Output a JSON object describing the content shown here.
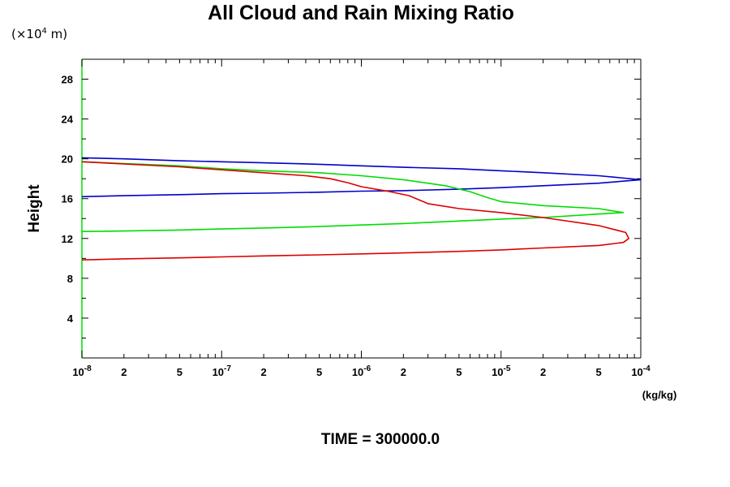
{
  "unit_label": {
    "prefix": "(×10",
    "exp": "4",
    "suffix": " m)"
  },
  "time_label": "TIME = 300000.0",
  "colors": {
    "series_1": "#0000cc",
    "series_2": "#00dd00",
    "series_3": "#dd0000",
    "axis": "#000000"
  },
  "chart_data": {
    "type": "line",
    "title": "All Cloud and Rain Mixing Ratio",
    "xlabel": "(kg/kg)",
    "ylabel": "Height",
    "xscale": "log",
    "xlim": [
      1e-08,
      0.0001
    ],
    "ylim": [
      0,
      30
    ],
    "grid": false,
    "x_tick_labels": [
      {
        "v": 1e-08,
        "base": "10",
        "exp": "-8"
      },
      {
        "v": 2e-08,
        "text": "2"
      },
      {
        "v": 5e-08,
        "text": "5"
      },
      {
        "v": 1e-07,
        "base": "10",
        "exp": "-7"
      },
      {
        "v": 2e-07,
        "text": "2"
      },
      {
        "v": 5e-07,
        "text": "5"
      },
      {
        "v": 1e-06,
        "base": "10",
        "exp": "-6"
      },
      {
        "v": 2e-06,
        "text": "2"
      },
      {
        "v": 5e-06,
        "text": "5"
      },
      {
        "v": 1e-05,
        "base": "10",
        "exp": "-5"
      },
      {
        "v": 2e-05,
        "text": "2"
      },
      {
        "v": 5e-05,
        "text": "5"
      },
      {
        "v": 0.0001,
        "base": "10",
        "exp": "-4"
      }
    ],
    "y_tick_labels": [
      "4",
      "8",
      "12",
      "16",
      "20",
      "24",
      "28"
    ],
    "y_ticks": [
      4,
      8,
      12,
      16,
      20,
      24,
      28
    ],
    "series": [
      {
        "color": "#0000cc",
        "x": [
          1e-08,
          2e-08,
          5e-08,
          1e-07,
          2e-07,
          5e-07,
          1e-06,
          2e-06,
          5e-06,
          1e-05,
          2e-05,
          5e-05,
          0.0001,
          5e-05,
          2e-05,
          1e-05,
          5e-06,
          2e-06,
          1e-06,
          5e-07,
          2e-07,
          1e-07,
          5e-08,
          2e-08,
          1e-08
        ],
        "y": [
          20.1,
          20.0,
          19.8,
          19.7,
          19.6,
          19.45,
          19.3,
          19.15,
          19.0,
          18.8,
          18.6,
          18.3,
          17.9,
          17.55,
          17.3,
          17.1,
          16.95,
          16.8,
          16.75,
          16.65,
          16.55,
          16.5,
          16.4,
          16.3,
          16.2
        ]
      },
      {
        "color": "#00dd00",
        "x": [
          1e-08,
          5e-08,
          1e-07,
          2e-07,
          5e-07,
          1e-06,
          2e-06,
          4e-06,
          6e-06,
          8e-06,
          1e-05,
          2e-05,
          5e-05,
          7.5e-05,
          5e-05,
          2e-05,
          1e-05,
          5e-06,
          2e-06,
          1e-06,
          5e-07,
          2e-07,
          1e-07,
          5e-08,
          2e-08,
          1e-08
        ],
        "y": [
          19.7,
          19.3,
          19.0,
          18.8,
          18.6,
          18.3,
          17.9,
          17.3,
          16.7,
          16.1,
          15.7,
          15.3,
          15.0,
          14.6,
          14.45,
          14.1,
          13.95,
          13.75,
          13.5,
          13.35,
          13.2,
          13.05,
          12.95,
          12.85,
          12.75,
          12.7
        ]
      },
      {
        "color": "#dd0000",
        "x": [
          1e-08,
          5e-08,
          1e-07,
          2e-07,
          4e-07,
          6e-07,
          8e-07,
          1e-06,
          1.6e-06,
          2.2e-06,
          3e-06,
          5e-06,
          1e-05,
          2e-05,
          5e-05,
          7.8e-05,
          8.2e-05,
          7.5e-05,
          5e-05,
          2e-05,
          1e-05,
          5e-06,
          2e-06,
          1e-06,
          5e-07,
          2e-07,
          1e-07,
          5e-08,
          2e-08,
          1e-08
        ],
        "y": [
          19.7,
          19.2,
          18.9,
          18.6,
          18.3,
          18.0,
          17.6,
          17.2,
          16.7,
          16.3,
          15.5,
          15.0,
          14.6,
          14.1,
          13.3,
          12.6,
          12.0,
          11.6,
          11.3,
          11.05,
          10.85,
          10.7,
          10.55,
          10.45,
          10.35,
          10.25,
          10.15,
          10.05,
          9.95,
          9.85
        ]
      }
    ]
  }
}
